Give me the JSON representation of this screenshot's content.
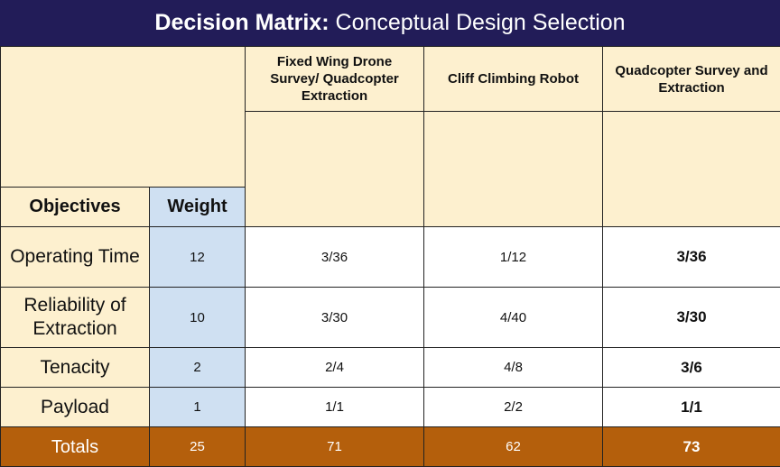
{
  "title": {
    "bold": "Decision Matrix:",
    "rest": "Conceptual Design Selection"
  },
  "headers": {
    "objectives": "Objectives",
    "weight": "Weight",
    "concepts": [
      "Fixed Wing Drone Survey/ Quadcopter Extraction",
      "Cliff Climbing Robot",
      "Quadcopter Survey and Extraction"
    ]
  },
  "images": [
    "quadcopter-drone-image",
    "fixed-wing-drone-image",
    "climbing-robot-image",
    "quadcopter-drone-image"
  ],
  "rows": [
    {
      "objective": "Operating Time",
      "weight": "12",
      "scores": [
        "3/36",
        "1/12",
        "3/36"
      ]
    },
    {
      "objective": "Reliability of Extraction",
      "weight": "10",
      "scores": [
        "3/30",
        "4/40",
        "3/30"
      ]
    },
    {
      "objective": "Tenacity",
      "weight": "2",
      "scores": [
        "2/4",
        "4/8",
        "3/6"
      ]
    },
    {
      "objective": "Payload",
      "weight": "1",
      "scores": [
        "1/1",
        "2/2",
        "1/1"
      ]
    }
  ],
  "totals": {
    "label": "Totals",
    "weight": "25",
    "scores": [
      "71",
      "62",
      "73"
    ]
  },
  "colors": {
    "title_bg": "#221c58",
    "cream": "#fdf0cf",
    "weight_blue": "#cfe0f2",
    "totals_orange": "#b45f0c"
  }
}
